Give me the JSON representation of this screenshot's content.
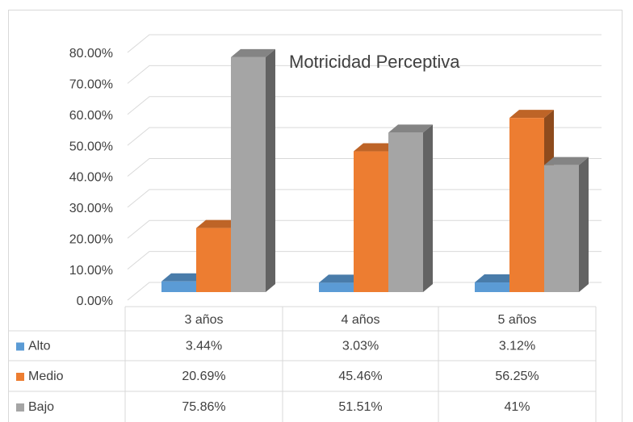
{
  "chart_data": {
    "type": "bar3d",
    "title": "Motricidad Perceptiva",
    "categories": [
      "3 años",
      "4 años",
      "5 años"
    ],
    "series": [
      {
        "name": "Alto",
        "color": "#5b9bd5",
        "values": [
          3.44,
          3.03,
          3.12
        ],
        "value_labels": [
          "3.44%",
          "3.03%",
          "3.12%"
        ]
      },
      {
        "name": "Medio",
        "color": "#ed7d31",
        "values": [
          20.69,
          45.46,
          56.25
        ],
        "value_labels": [
          "20.69%",
          "45.46%",
          "56.25%"
        ]
      },
      {
        "name": "Bajo",
        "color": "#a5a5a5",
        "values": [
          75.86,
          51.51,
          41
        ],
        "value_labels": [
          "75.86%",
          "51.51%",
          "41%"
        ]
      }
    ],
    "ylim": [
      0,
      80
    ],
    "yticks": [
      {
        "value": 0,
        "label": "0.00%"
      },
      {
        "value": 10,
        "label": "10.00%"
      },
      {
        "value": 20,
        "label": "20.00%"
      },
      {
        "value": 30,
        "label": "30.00%"
      },
      {
        "value": 40,
        "label": "40.00%"
      },
      {
        "value": 50,
        "label": "50.00%"
      },
      {
        "value": 60,
        "label": "60.00%"
      },
      {
        "value": 70,
        "label": "70.00%"
      },
      {
        "value": 80,
        "label": "80.00%"
      }
    ],
    "grid": true
  }
}
